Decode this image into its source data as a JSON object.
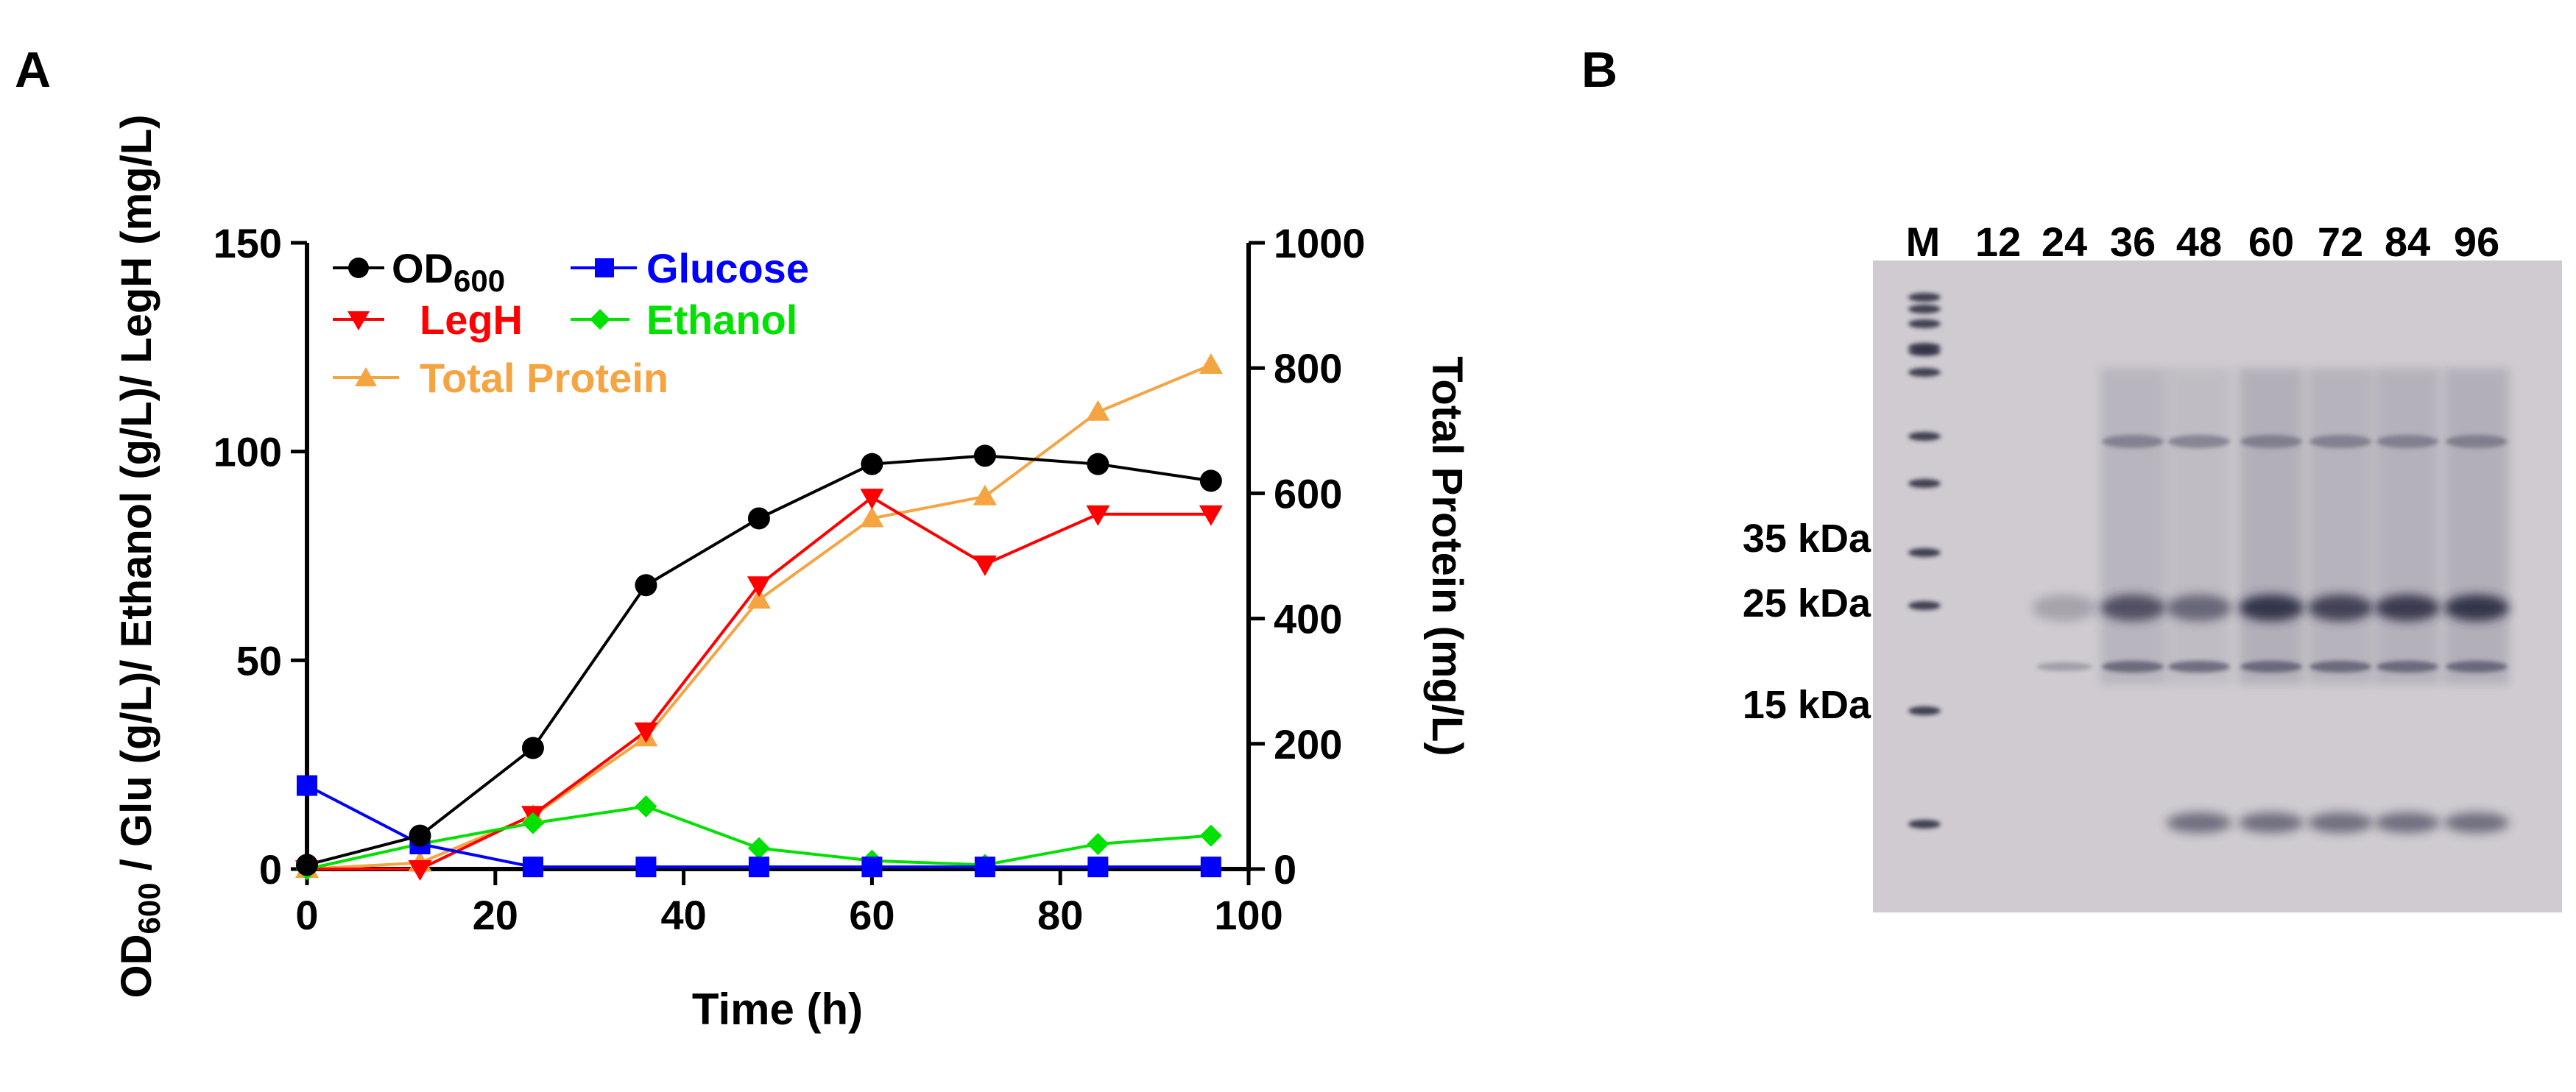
{
  "panels": {
    "a_label": "A",
    "b_label": "B"
  },
  "colors": {
    "od600": "#000000",
    "glucose": "#0000ff",
    "legh": "#ff0000",
    "ethanol": "#00e100",
    "total_protein": "#f5a442",
    "axis": "#000000"
  },
  "chart_data": [
    {
      "type": "line",
      "panel": "A",
      "xlabel": "Time (h)",
      "ylabel_left": "OD600 / Glu (g/L)/ Ethanol (g/L)/ LegH (mg/L)",
      "ylabel_left_parts": {
        "od": "OD",
        "od_sub": "600",
        "rest": " / Glu (g/L)/ Ethanol (g/L)/ LegH (mg/L)"
      },
      "ylabel_right": "Total Protein (mg/L)",
      "xlim": [
        0,
        100
      ],
      "ylim_left": [
        0,
        150
      ],
      "ylim_right": [
        0,
        1000
      ],
      "xticks": [
        0,
        20,
        40,
        60,
        80,
        100
      ],
      "yticks_left": [
        0,
        50,
        100,
        150
      ],
      "yticks_right": [
        0,
        200,
        400,
        600,
        800,
        1000
      ],
      "grid": false,
      "legend_position": "top-left",
      "x": [
        0,
        12,
        24,
        36,
        48,
        60,
        72,
        84,
        96
      ],
      "series": [
        {
          "key": "od600",
          "name": "OD",
          "name_sub": "600",
          "marker": "circle",
          "axis": "left",
          "values": [
            1,
            8,
            29,
            68,
            84,
            97,
            99,
            97,
            93
          ]
        },
        {
          "key": "glucose",
          "name": "Glucose",
          "marker": "square",
          "axis": "left",
          "values": [
            20,
            6,
            0.5,
            0.5,
            0.5,
            0.5,
            0.5,
            0.5,
            0.5
          ]
        },
        {
          "key": "legh",
          "name": "LegH",
          "marker": "triangle-down",
          "axis": "left",
          "values": [
            0,
            0,
            13,
            33,
            68,
            89,
            73,
            85,
            85
          ]
        },
        {
          "key": "ethanol",
          "name": "Ethanol",
          "marker": "diamond",
          "axis": "left",
          "values": [
            0,
            6,
            11,
            15,
            5,
            2,
            1,
            6,
            8
          ]
        },
        {
          "key": "total_protein",
          "name": "Total Protein",
          "marker": "triangle-up",
          "axis": "right",
          "values": [
            0,
            10,
            85,
            210,
            430,
            560,
            595,
            730,
            805
          ]
        }
      ]
    },
    {
      "type": "gel",
      "panel": "B",
      "lane_labels": [
        "M",
        "12",
        "24",
        "36",
        "48",
        "60",
        "72",
        "84",
        "96"
      ],
      "marker_labels": [
        "35 kDa",
        "25 kDa",
        "15 kDa"
      ]
    }
  ]
}
